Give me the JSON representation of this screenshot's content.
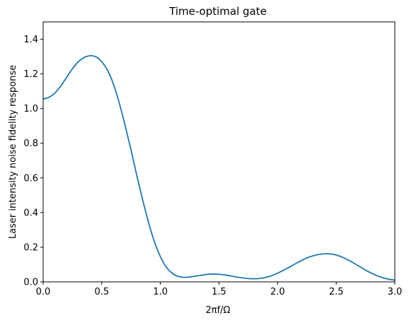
{
  "chart_data": {
    "type": "line",
    "title": "Time-optimal gate",
    "xlabel": "2πf/Ω",
    "ylabel": "Laser intensity noise fidelity response",
    "xlim": [
      0.0,
      3.0
    ],
    "ylim": [
      0.0,
      1.5
    ],
    "grid": false,
    "x_ticks": [
      "0.0",
      "0.5",
      "1.0",
      "1.5",
      "2.0",
      "2.5",
      "3.0"
    ],
    "y_ticks": [
      "0.0",
      "0.2",
      "0.4",
      "0.6",
      "0.8",
      "1.0",
      "1.2",
      "1.4"
    ],
    "series": [
      {
        "color": "#1f77b4",
        "x": [
          0.0,
          0.05,
          0.1,
          0.15,
          0.2,
          0.25,
          0.3,
          0.35,
          0.4,
          0.43,
          0.46,
          0.5,
          0.55,
          0.6,
          0.65,
          0.7,
          0.75,
          0.8,
          0.85,
          0.9,
          0.95,
          1.0,
          1.05,
          1.1,
          1.15,
          1.2,
          1.25,
          1.3,
          1.35,
          1.4,
          1.45,
          1.5,
          1.55,
          1.6,
          1.65,
          1.7,
          1.75,
          1.8,
          1.85,
          1.9,
          1.95,
          2.0,
          2.05,
          2.1,
          2.15,
          2.2,
          2.25,
          2.3,
          2.35,
          2.4,
          2.45,
          2.5,
          2.55,
          2.6,
          2.65,
          2.7,
          2.75,
          2.8,
          2.85,
          2.9,
          2.95,
          3.0
        ],
        "y": [
          1.055,
          1.065,
          1.09,
          1.13,
          1.18,
          1.23,
          1.27,
          1.295,
          1.305,
          1.303,
          1.295,
          1.27,
          1.22,
          1.14,
          1.03,
          0.9,
          0.76,
          0.61,
          0.47,
          0.34,
          0.23,
          0.145,
          0.085,
          0.05,
          0.032,
          0.026,
          0.028,
          0.033,
          0.038,
          0.043,
          0.045,
          0.044,
          0.04,
          0.034,
          0.028,
          0.023,
          0.019,
          0.018,
          0.02,
          0.026,
          0.036,
          0.05,
          0.067,
          0.085,
          0.104,
          0.122,
          0.138,
          0.15,
          0.158,
          0.162,
          0.161,
          0.155,
          0.143,
          0.127,
          0.108,
          0.088,
          0.068,
          0.05,
          0.035,
          0.023,
          0.015,
          0.01
        ]
      }
    ]
  }
}
